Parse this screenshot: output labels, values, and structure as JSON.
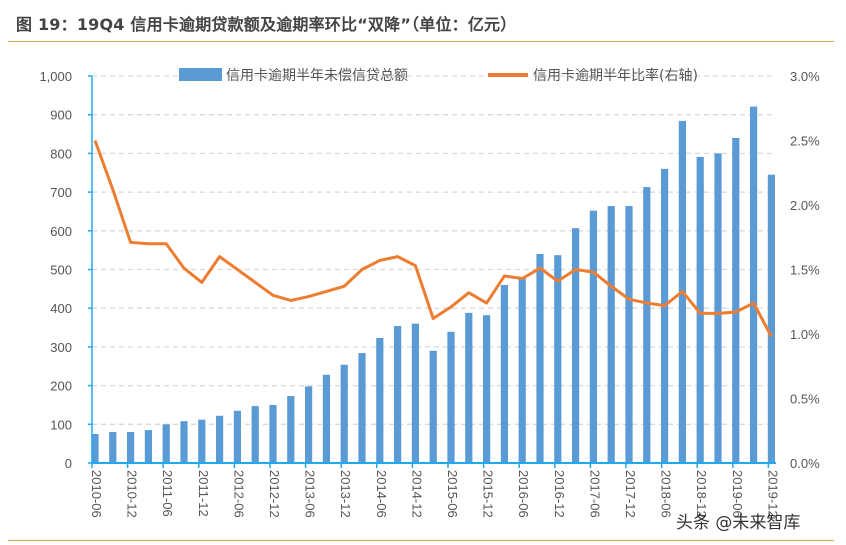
{
  "title": "图 19：19Q4 信用卡逾期贷款额及逾期率环比“双降”（单位：亿元）",
  "watermark": "头条 @未来智库",
  "colors": {
    "bar": "#5b9bd5",
    "line": "#ed7d31",
    "axis": "#1eaaf1",
    "grid": "#d9d9d9",
    "rule": "#e3a564"
  },
  "chart_data": {
    "type": "bar+line",
    "x_tick_labels": [
      "2010-06",
      "2010-12",
      "2011-06",
      "2011-12",
      "2012-06",
      "2012-12",
      "2013-06",
      "2013-12",
      "2014-06",
      "2014-12",
      "2015-06",
      "2015-12",
      "2016-06",
      "2016-12",
      "2017-06",
      "2017-12",
      "2018-06",
      "2018-12",
      "2019-06",
      "2019-12"
    ],
    "left_axis": {
      "ylim": [
        0,
        1000
      ],
      "ticks": [
        "0",
        "100",
        "200",
        "300",
        "400",
        "500",
        "600",
        "700",
        "800",
        "900",
        "1,000"
      ]
    },
    "right_axis": {
      "ylim": [
        0,
        3.0
      ],
      "ticks": [
        "0.0%",
        "0.5%",
        "1.0%",
        "1.5%",
        "2.0%",
        "2.5%",
        "3.0%"
      ]
    },
    "grid": "horizontal dashed",
    "legend_position": "top",
    "series": [
      {
        "name": "信用卡逾期半年未偿信贷总额",
        "type": "bar",
        "axis": "left",
        "values": [
          75,
          80,
          80,
          85,
          100,
          108,
          112,
          122,
          135,
          147,
          150,
          173,
          198,
          228,
          254,
          284,
          323,
          354,
          360,
          290,
          339,
          388,
          382,
          460,
          480,
          540,
          537,
          607,
          652,
          664,
          664,
          713,
          760,
          884,
          791,
          800,
          840,
          921,
          745
        ]
      },
      {
        "name": "信用卡逾期半年比率(右轴)",
        "type": "line",
        "axis": "right",
        "unit": "%",
        "values": [
          2.5,
          2.12,
          1.71,
          1.7,
          1.7,
          1.51,
          1.4,
          1.6,
          1.5,
          1.4,
          1.3,
          1.26,
          1.29,
          1.33,
          1.37,
          1.5,
          1.57,
          1.6,
          1.53,
          1.12,
          1.21,
          1.32,
          1.24,
          1.45,
          1.43,
          1.51,
          1.41,
          1.5,
          1.48,
          1.37,
          1.27,
          1.24,
          1.22,
          1.33,
          1.16,
          1.16,
          1.17,
          1.24,
          0.98
        ]
      }
    ]
  }
}
